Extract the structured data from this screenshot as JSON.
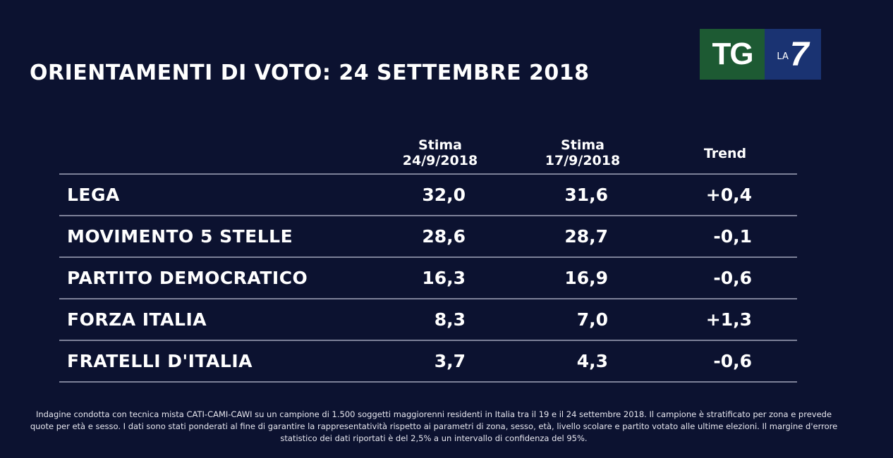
{
  "title": "ORIENTAMENTI DI VOTO: 24 SETTEMBRE 2018",
  "logo": {
    "tg": "TG",
    "la": "LA",
    "seven": "7",
    "colors": {
      "green": "#1d5a33",
      "blue": "#1a3372"
    }
  },
  "chart_data": {
    "type": "table",
    "columns": [
      "Stima 24/9/2018",
      "Stima 17/9/2018",
      "Trend"
    ],
    "header": {
      "col1_line1": "Stima",
      "col1_line2": "24/9/2018",
      "col2_line1": "Stima",
      "col2_line2": "17/9/2018",
      "col3": "Trend"
    },
    "rows": [
      {
        "party": "LEGA",
        "current": "32,0",
        "previous": "31,6",
        "trend": "+0,4"
      },
      {
        "party": "MOVIMENTO 5 STELLE",
        "current": "28,6",
        "previous": "28,7",
        "trend": "-0,1"
      },
      {
        "party": "PARTITO DEMOCRATICO",
        "current": "16,3",
        "previous": "16,9",
        "trend": "-0,6"
      },
      {
        "party": "FORZA ITALIA",
        "current": "8,3",
        "previous": "7,0",
        "trend": "+1,3"
      },
      {
        "party": "FRATELLI D'ITALIA",
        "current": "3,7",
        "previous": "4,3",
        "trend": "-0,6"
      }
    ]
  },
  "footnote": "Indagine condotta con tecnica mista CATI-CAMI-CAWI su un campione di 1.500 soggetti maggiorenni residenti in Italia tra il 19 e il 24 settembre 2018. Il campione è stratificato per zona e prevede quote per età e sesso. I dati sono stati ponderati al fine di garantire la rappresentatività rispetto ai parametri di zona, sesso, età, livello scolare e partito votato alle ultime elezioni. Il margine d'errore statistico dei dati riportati è del 2,5% a un intervallo di confidenza del 95%."
}
